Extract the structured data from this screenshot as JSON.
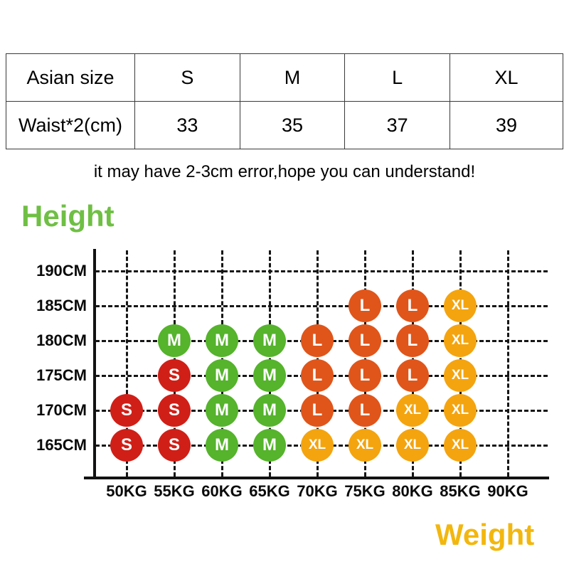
{
  "table": {
    "rows": [
      [
        "Asian size",
        "S",
        "M",
        "L",
        "XL"
      ],
      [
        "Waist*2(cm)",
        "33",
        "35",
        "37",
        "39"
      ]
    ]
  },
  "note": "it may have 2-3cm error,hope you can understand!",
  "axis_titles": {
    "y": "Height",
    "x": "Weight"
  },
  "colors": {
    "S": "#d01f17",
    "M": "#55b32c",
    "L": "#e0551a",
    "XL": "#f4a40e",
    "height_title": "#6fbf44",
    "weight_title": "#f2b70f",
    "grid": "#161616"
  },
  "chart_data": {
    "type": "scatter",
    "xlabel": "Weight",
    "ylabel": "Height",
    "x_ticks": [
      "50KG",
      "55KG",
      "60KG",
      "65KG",
      "70KG",
      "75KG",
      "80KG",
      "85KG",
      "90KG"
    ],
    "y_ticks": [
      "190CM",
      "185CM",
      "180CM",
      "175CM",
      "170CM",
      "165CM"
    ],
    "points": [
      {
        "height": "185CM",
        "weight": "75KG",
        "size": "L"
      },
      {
        "height": "185CM",
        "weight": "80KG",
        "size": "L"
      },
      {
        "height": "185CM",
        "weight": "85KG",
        "size": "XL"
      },
      {
        "height": "180CM",
        "weight": "55KG",
        "size": "M"
      },
      {
        "height": "180CM",
        "weight": "60KG",
        "size": "M"
      },
      {
        "height": "180CM",
        "weight": "65KG",
        "size": "M"
      },
      {
        "height": "180CM",
        "weight": "70KG",
        "size": "L"
      },
      {
        "height": "180CM",
        "weight": "75KG",
        "size": "L"
      },
      {
        "height": "180CM",
        "weight": "80KG",
        "size": "L"
      },
      {
        "height": "180CM",
        "weight": "85KG",
        "size": "XL"
      },
      {
        "height": "175CM",
        "weight": "55KG",
        "size": "S"
      },
      {
        "height": "175CM",
        "weight": "60KG",
        "size": "M"
      },
      {
        "height": "175CM",
        "weight": "65KG",
        "size": "M"
      },
      {
        "height": "175CM",
        "weight": "70KG",
        "size": "L"
      },
      {
        "height": "175CM",
        "weight": "75KG",
        "size": "L"
      },
      {
        "height": "175CM",
        "weight": "80KG",
        "size": "L"
      },
      {
        "height": "175CM",
        "weight": "85KG",
        "size": "XL"
      },
      {
        "height": "170CM",
        "weight": "50KG",
        "size": "S"
      },
      {
        "height": "170CM",
        "weight": "55KG",
        "size": "S"
      },
      {
        "height": "170CM",
        "weight": "60KG",
        "size": "M"
      },
      {
        "height": "170CM",
        "weight": "65KG",
        "size": "M"
      },
      {
        "height": "170CM",
        "weight": "70KG",
        "size": "L"
      },
      {
        "height": "170CM",
        "weight": "75KG",
        "size": "L"
      },
      {
        "height": "170CM",
        "weight": "80KG",
        "size": "XL"
      },
      {
        "height": "170CM",
        "weight": "85KG",
        "size": "XL"
      },
      {
        "height": "165CM",
        "weight": "50KG",
        "size": "S"
      },
      {
        "height": "165CM",
        "weight": "55KG",
        "size": "S"
      },
      {
        "height": "165CM",
        "weight": "60KG",
        "size": "M"
      },
      {
        "height": "165CM",
        "weight": "65KG",
        "size": "M"
      },
      {
        "height": "165CM",
        "weight": "70KG",
        "size": "XL"
      },
      {
        "height": "165CM",
        "weight": "75KG",
        "size": "XL"
      },
      {
        "height": "165CM",
        "weight": "80KG",
        "size": "XL"
      },
      {
        "height": "165CM",
        "weight": "85KG",
        "size": "XL"
      }
    ]
  }
}
